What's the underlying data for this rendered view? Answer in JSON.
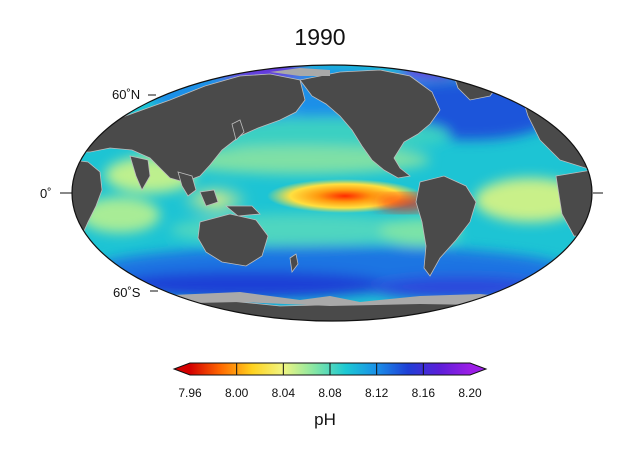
{
  "map": {
    "title": "1990",
    "projection": "mollweide",
    "latitude_labels": [
      "60˚N",
      "0˚",
      "60˚S"
    ],
    "land_color": "#4a4a4a",
    "sea_ice_color": "#a9a9a9",
    "variable": "pH"
  },
  "colorbar": {
    "label": "pH",
    "min": 7.96,
    "max": 8.2,
    "ticks": [
      "7.96",
      "8.00",
      "8.04",
      "8.08",
      "8.12",
      "8.16",
      "8.20"
    ],
    "colors": [
      "#d40000",
      "#ff6a00",
      "#ffd21f",
      "#f0f582",
      "#86e6a4",
      "#1cc9d3",
      "#1a8fe8",
      "#1f3fd6",
      "#5b1ed8",
      "#9b1ee6"
    ]
  }
}
